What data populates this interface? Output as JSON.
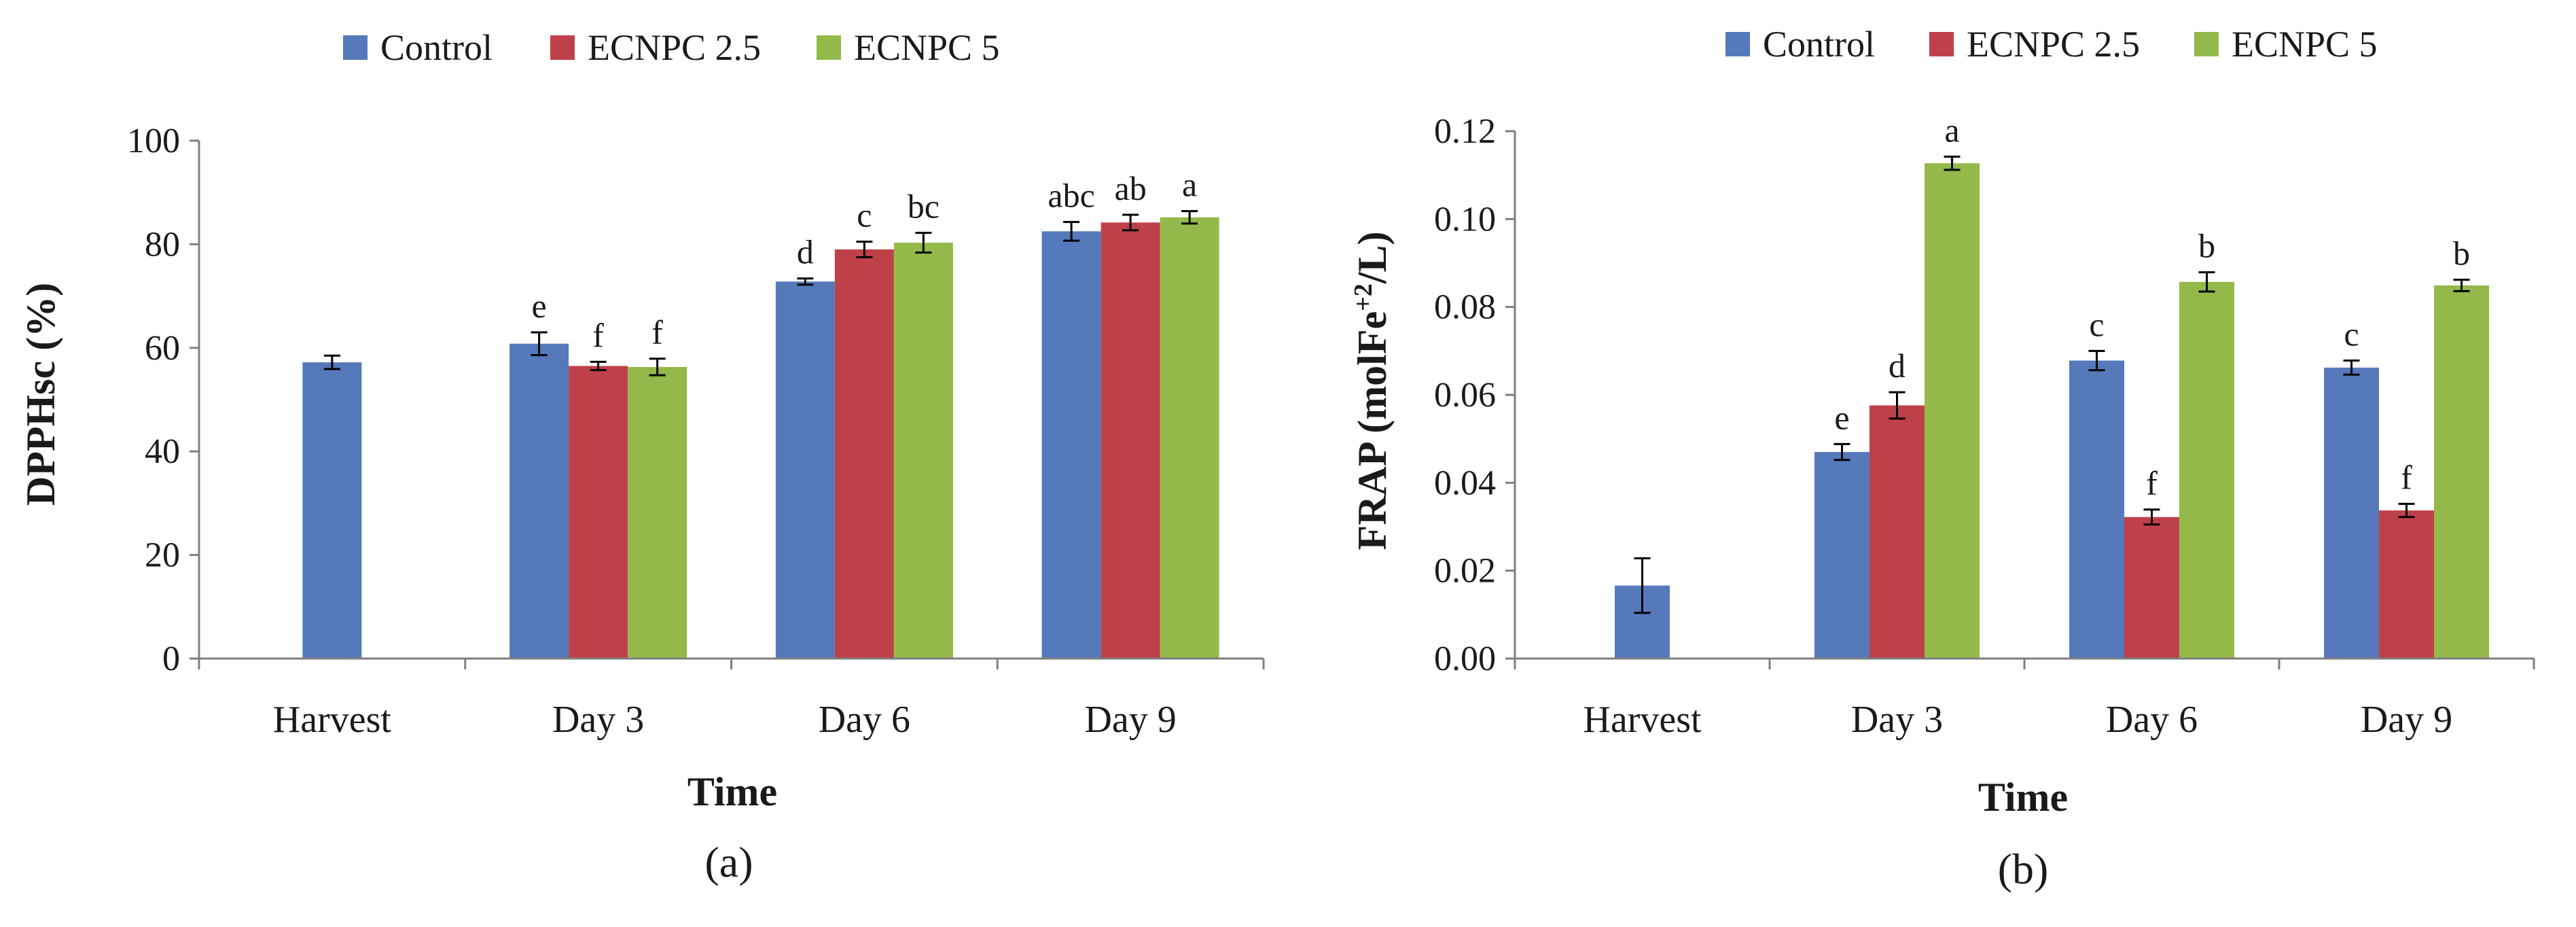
{
  "colors": {
    "Control": "#5579BB",
    "ECNPC 2.5": "#BE4149",
    "ECNPC 5": "#93B94B",
    "axis": "#7f7f7f",
    "text": "#1a1a1a"
  },
  "chart_data": [
    {
      "type": "bar",
      "panel_label": "(a)",
      "title": "",
      "xlabel": "Time",
      "ylabel": "DPPHsc (%)",
      "ylim": [
        0,
        100
      ],
      "yticks": [
        "0",
        "20",
        "40",
        "60",
        "80",
        "100"
      ],
      "grid": false,
      "legend_position": "top-center",
      "categories": [
        "Harvest",
        "Day 3",
        "Day 6",
        "Day 9"
      ],
      "series": [
        {
          "name": "Control",
          "values": [
            57.2,
            60.8,
            72.8,
            82.5
          ],
          "errors": [
            1.3,
            2.2,
            0.6,
            1.8
          ],
          "labels": [
            "",
            "e",
            "d",
            "abc"
          ]
        },
        {
          "name": "ECNPC 2.5",
          "values": [
            null,
            56.5,
            79.0,
            84.2
          ],
          "errors": [
            null,
            0.8,
            1.5,
            1.5
          ],
          "labels": [
            "",
            "f",
            "c",
            "ab"
          ]
        },
        {
          "name": "ECNPC 5",
          "values": [
            null,
            56.3,
            80.3,
            85.2
          ],
          "errors": [
            null,
            1.6,
            1.9,
            1.2
          ],
          "labels": [
            "",
            "f",
            "bc",
            "a"
          ]
        }
      ]
    },
    {
      "type": "bar",
      "panel_label": "(b)",
      "title": "",
      "xlabel": "Time",
      "ylabel_parts": [
        "FRAP (molFe",
        "+2",
        "/L)"
      ],
      "ylim": [
        0,
        0.12
      ],
      "yticks": [
        "0.00",
        "0.02",
        "0.04",
        "0.06",
        "0.08",
        "0.10",
        "0.12"
      ],
      "grid": false,
      "legend_position": "top-center",
      "categories": [
        "Harvest",
        "Day 3",
        "Day 6",
        "Day 9"
      ],
      "series": [
        {
          "name": "Control",
          "values": [
            0.0166,
            0.047,
            0.0678,
            0.0662
          ],
          "errors": [
            0.0062,
            0.0018,
            0.0022,
            0.0016
          ],
          "labels": [
            "",
            "e",
            "c",
            "c"
          ]
        },
        {
          "name": "ECNPC 2.5",
          "values": [
            null,
            0.0576,
            0.0322,
            0.0337
          ],
          "errors": [
            null,
            0.003,
            0.0017,
            0.0015
          ],
          "labels": [
            "",
            "d",
            "f",
            "f"
          ]
        },
        {
          "name": "ECNPC 5",
          "values": [
            null,
            0.1127,
            0.0857,
            0.0849
          ],
          "errors": [
            null,
            0.0015,
            0.0022,
            0.0013
          ],
          "labels": [
            "",
            "a",
            "b",
            "b"
          ]
        }
      ]
    }
  ]
}
